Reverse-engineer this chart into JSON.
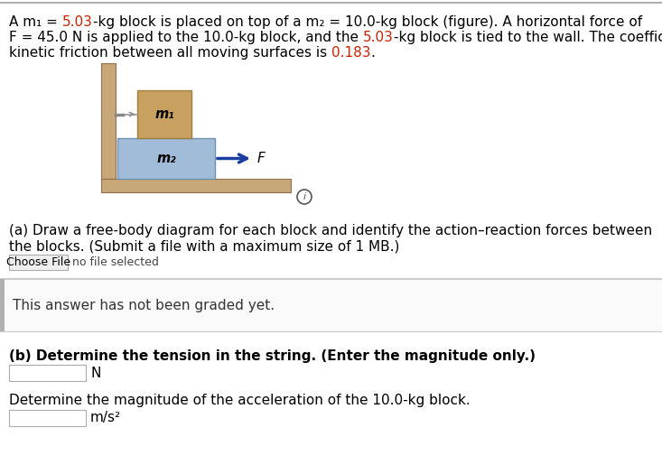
{
  "bg_color": "#ffffff",
  "line1_segs": [
    [
      "A m₁ = ",
      "#000000"
    ],
    [
      "5.03",
      "#cc2200"
    ],
    [
      "-kg block is placed on top of a m₂ = 10.0-kg block (figure). A horizontal force of",
      "#000000"
    ]
  ],
  "line2_segs": [
    [
      "F = 45.0 N is applied to the 10.0-kg block, and the ",
      "#000000"
    ],
    [
      "5.03",
      "#cc2200"
    ],
    [
      "-kg block is tied to the wall. The coefficient of",
      "#000000"
    ]
  ],
  "line3_segs": [
    [
      "kinetic friction between all moving surfaces is ",
      "#000000"
    ],
    [
      "0.183",
      "#cc2200"
    ],
    [
      ".",
      "#000000"
    ]
  ],
  "diagram": {
    "wall_color": "#c8a878",
    "floor_color": "#c8a878",
    "m1_color": "#c8a060",
    "m2_color": "#a0bcd8",
    "arrow_color": "#1a3fa0",
    "string_color": "#999999",
    "m1_edge": "#a08040",
    "m2_edge": "#7090b0"
  },
  "part_a_line1": "(a) Draw a free-body diagram for each block and identify the action–reaction forces between",
  "part_a_line2": "the blocks. (Submit a file with a maximum size of 1 MB.)",
  "choose_file": "Choose File",
  "no_file": "no file selected",
  "ungraded": "This answer has not been graded yet.",
  "part_b": "(b) Determine the tension in the string. (Enter the magnitude only.)",
  "unit_n": "N",
  "accel_line": "Determine the magnitude of the acceleration of the 10.0-kg block.",
  "unit_ms2": "m/s²",
  "fs": 11.0,
  "fs_small": 9.0,
  "fs_label": 11.5
}
